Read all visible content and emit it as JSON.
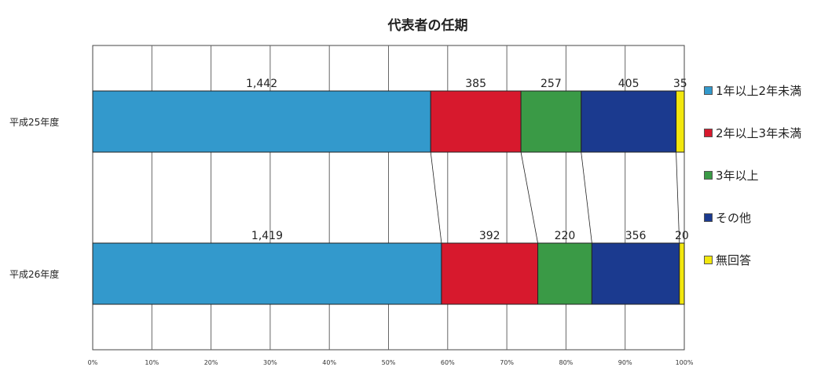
{
  "chart_data": {
    "type": "bar",
    "orientation": "horizontal",
    "stacked": "percent",
    "title": "代表者の任期",
    "categories": [
      "平成25年度",
      "平成26年度"
    ],
    "series": [
      {
        "name": "1年以上2年未満",
        "color": "#3399cc",
        "values": [
          1442,
          1419
        ]
      },
      {
        "name": "2年以上3年未満",
        "color": "#d7192d",
        "values": [
          385,
          392
        ]
      },
      {
        "name": "3年以上",
        "color": "#3a9a46",
        "values": [
          257,
          220
        ]
      },
      {
        "name": "その他",
        "color": "#1b3a8f",
        "values": [
          405,
          356
        ]
      },
      {
        "name": "無回答",
        "color": "#f2e70e",
        "values": [
          35,
          20
        ]
      }
    ],
    "data_labels": [
      [
        "1,442",
        "385",
        "257",
        "405",
        "35"
      ],
      [
        "1,419",
        "392",
        "220",
        "356",
        "20"
      ]
    ],
    "x_ticks": [
      "0%",
      "10%",
      "20%",
      "30%",
      "40%",
      "50%",
      "60%",
      "70%",
      "80%",
      "90%",
      "100%"
    ],
    "xlim": [
      0,
      100
    ],
    "grid": "vertical",
    "legend": "right",
    "series_connector_lines": true
  }
}
